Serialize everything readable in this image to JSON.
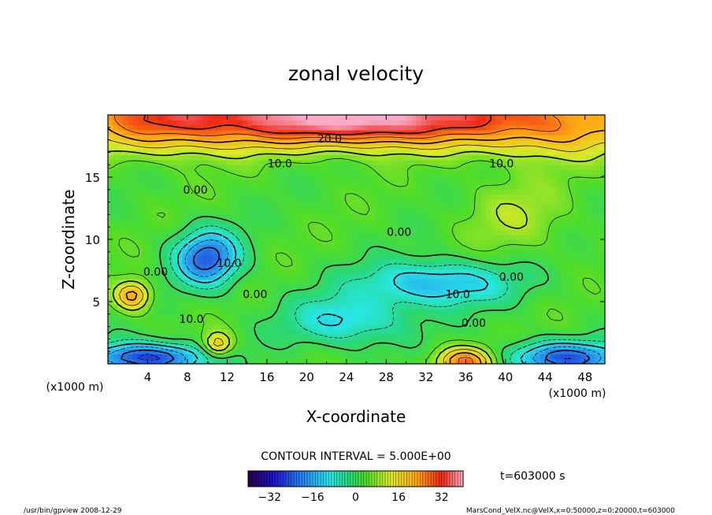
{
  "chart_data": {
    "type": "contour",
    "title": "zonal velocity",
    "xlabel": "X-coordinate",
    "ylabel": "Z-coordinate",
    "x_unit": "(x1000 m)",
    "x_ticks": [
      4,
      8,
      12,
      16,
      20,
      24,
      28,
      32,
      36,
      40,
      44,
      48
    ],
    "y_ticks": [
      5,
      10,
      15
    ],
    "xlim": [
      0,
      50
    ],
    "ylim": [
      0,
      20
    ],
    "contour_interval_label": "CONTOUR INTERVAL = 5.000E+00",
    "time_label": "t=603000 s",
    "colorbar": {
      "ticks": [
        -32,
        -16,
        0,
        16,
        32
      ],
      "min": -40,
      "max": 40
    },
    "contour_labels": [
      {
        "text": "20.0",
        "x": 22.3,
        "z": 18.1
      },
      {
        "text": "10.0",
        "x": 17.3,
        "z": 16.1
      },
      {
        "text": "10.0",
        "x": 39.6,
        "z": 16.1
      },
      {
        "text": "0.00",
        "x": 8.8,
        "z": 14.0
      },
      {
        "text": "0.00",
        "x": 29.3,
        "z": 10.6
      },
      {
        "text": "10.0",
        "x": 12.2,
        "z": 8.1
      },
      {
        "text": "0.00",
        "x": 4.8,
        "z": 7.4
      },
      {
        "text": "0.00",
        "x": 14.8,
        "z": 5.6
      },
      {
        "text": "0.00",
        "x": 40.6,
        "z": 7.0
      },
      {
        "text": "10.0",
        "x": 35.2,
        "z": 5.6
      },
      {
        "text": "10.0",
        "x": 8.4,
        "z": 3.6
      },
      {
        "text": "0.00",
        "x": 36.8,
        "z": 3.3
      }
    ],
    "field_features": [
      {
        "x": 25.0,
        "z": 19.8,
        "value": 34,
        "sx": 14,
        "sz": 2.2
      },
      {
        "x": 6.0,
        "z": 19.5,
        "value": 18,
        "sx": 8,
        "sz": 2.5
      },
      {
        "x": 45.0,
        "z": 19.0,
        "value": 14,
        "sx": 8,
        "sz": 2.5
      },
      {
        "x": 10.0,
        "z": 8.5,
        "value": -26,
        "sx": 3.2,
        "sz": 2.2
      },
      {
        "x": 33.0,
        "z": 6.5,
        "value": -18,
        "sx": 7.5,
        "sz": 1.8
      },
      {
        "x": 24.0,
        "z": 3.5,
        "value": -14,
        "sx": 6,
        "sz": 2.0
      },
      {
        "x": 4.0,
        "z": 0.5,
        "value": -30,
        "sx": 6,
        "sz": 1.2
      },
      {
        "x": 46.0,
        "z": 0.5,
        "value": -26,
        "sx": 6,
        "sz": 1.3
      },
      {
        "x": 36.0,
        "z": 0.2,
        "value": 24,
        "sx": 3,
        "sz": 1.2
      },
      {
        "x": 2.5,
        "z": 5.5,
        "value": 20,
        "sx": 1.8,
        "sz": 1.2
      },
      {
        "x": 11.0,
        "z": 1.5,
        "value": 18,
        "sx": 1.5,
        "sz": 1.0
      },
      {
        "x": 41.0,
        "z": 12.0,
        "value": 6,
        "sx": 5,
        "sz": 3
      }
    ]
  },
  "footer": {
    "left": "/usr/bin/gpview   2008-12-29",
    "right": "MarsCond_VelX.nc@VelX,x=0:50000,z=0:20000,t=603000"
  }
}
